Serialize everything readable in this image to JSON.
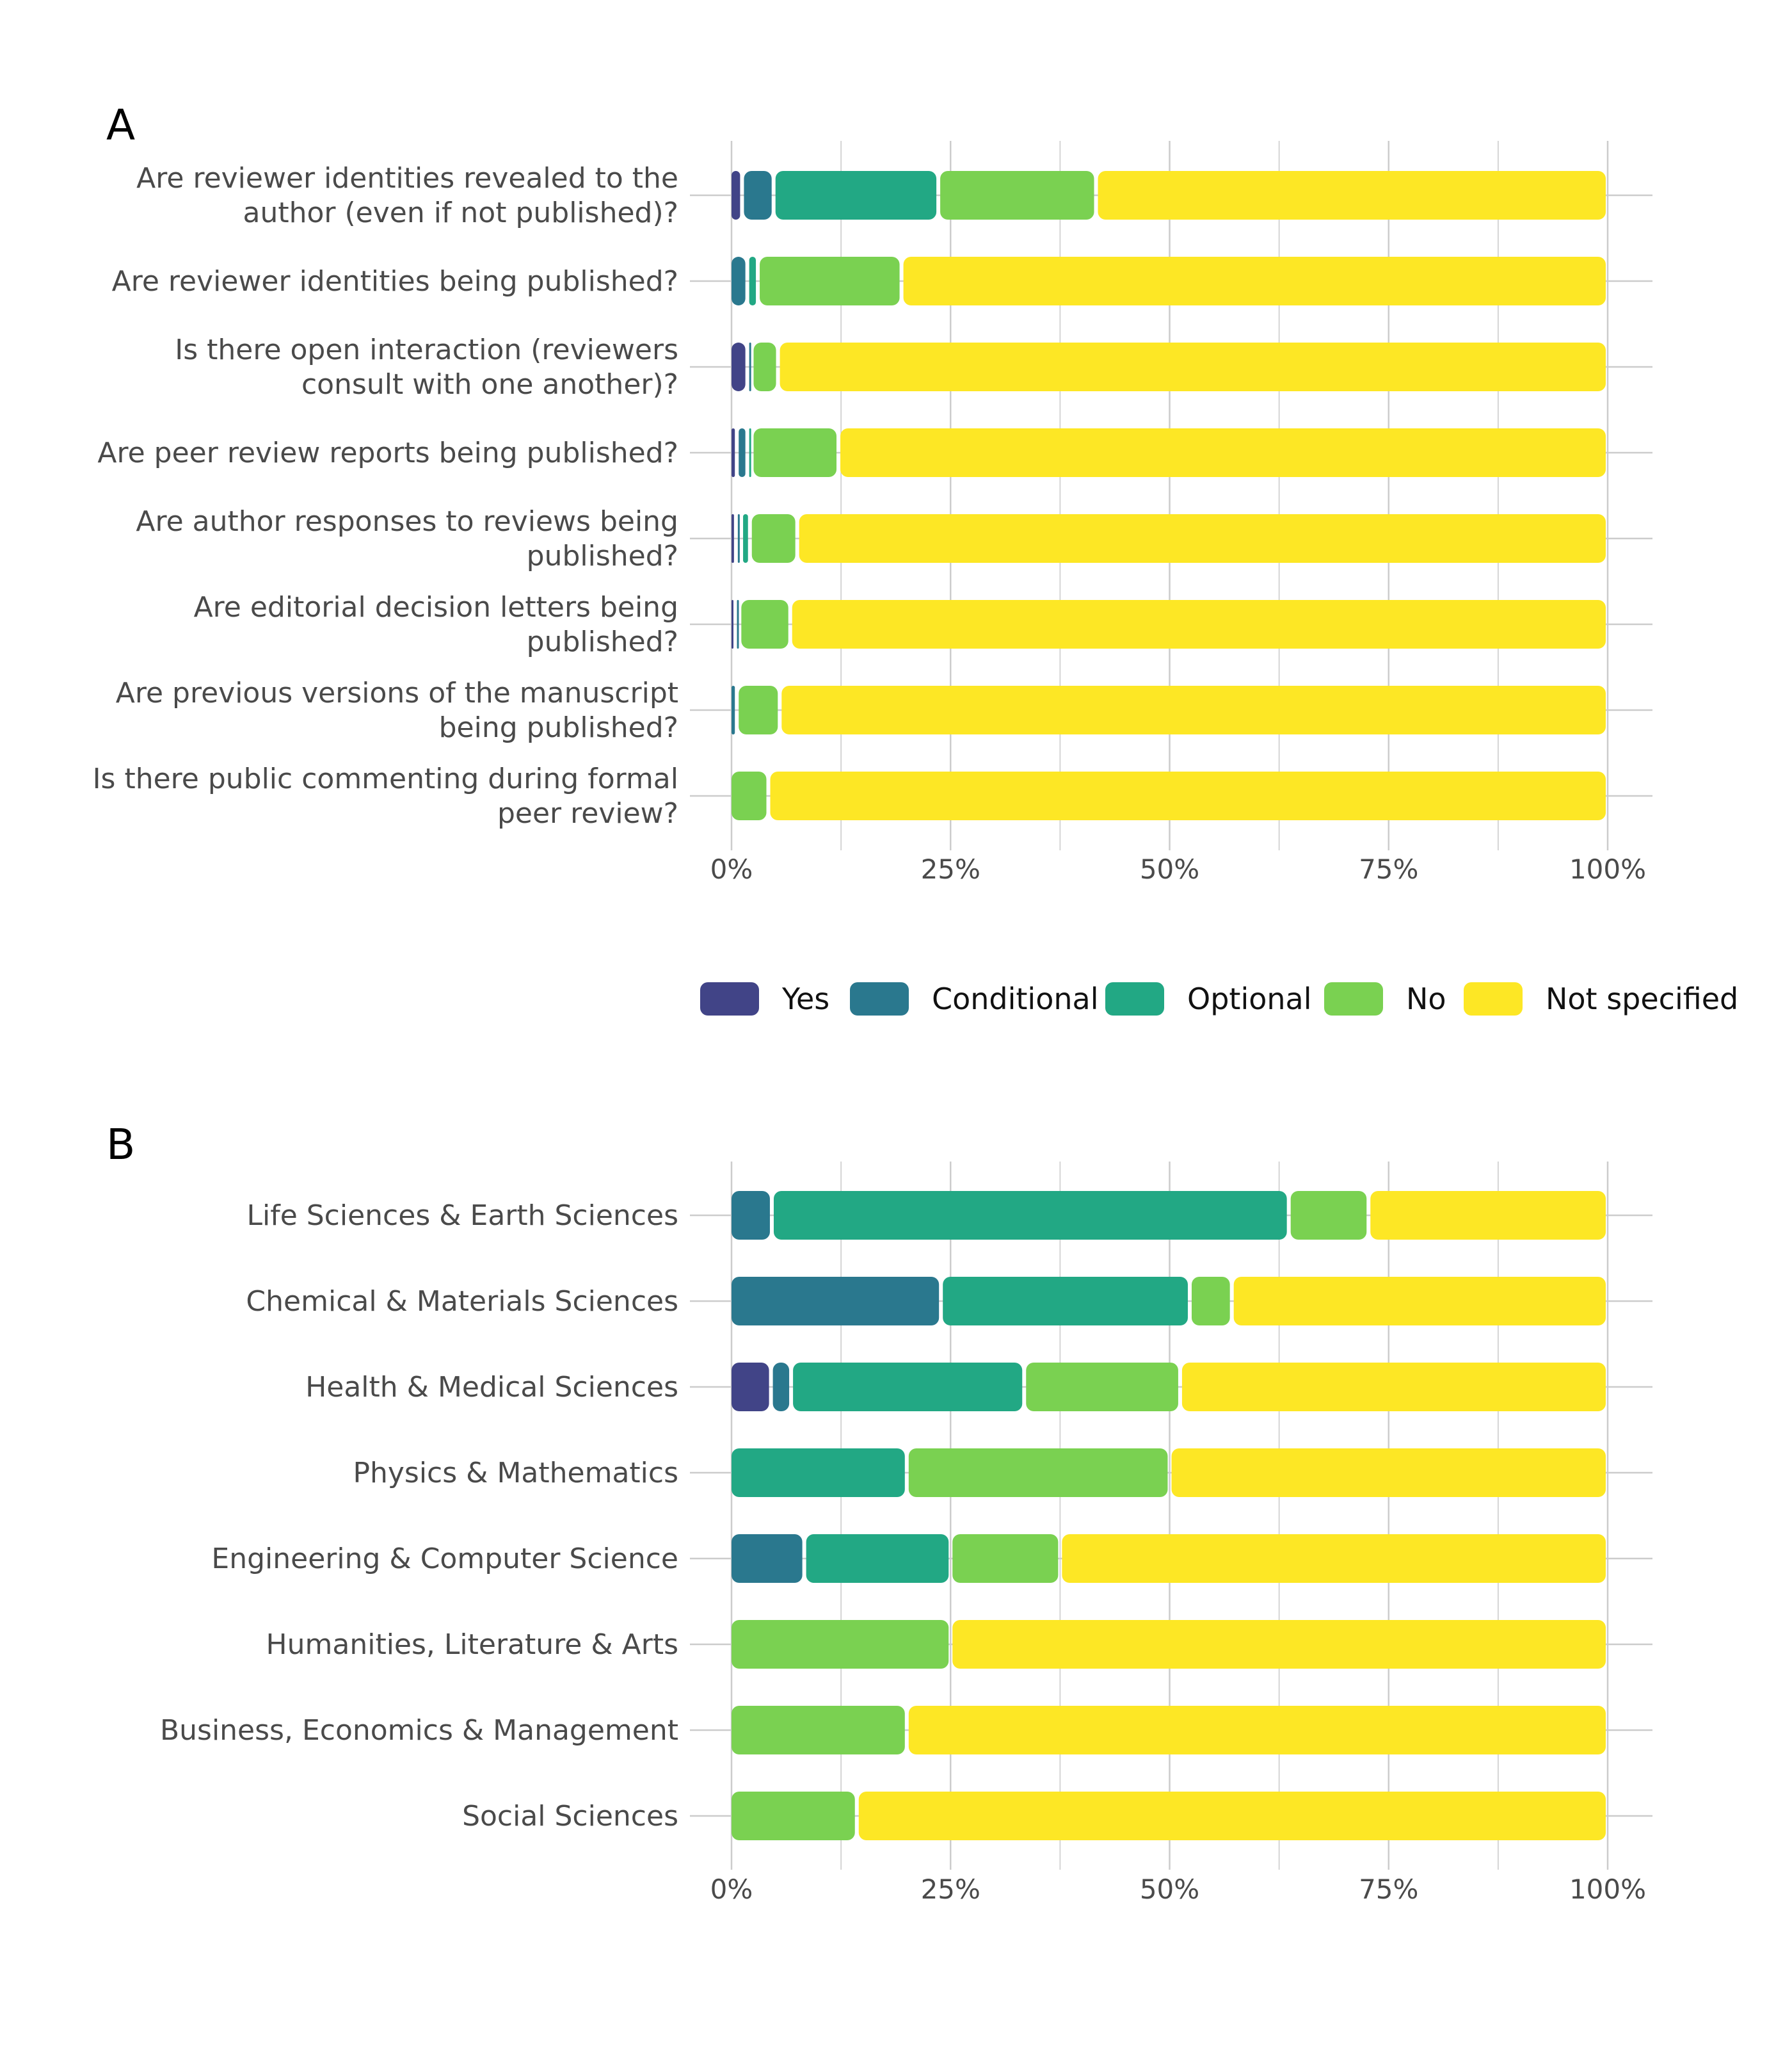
{
  "chart_data": [
    {
      "type": "bar",
      "stacked": true,
      "orientation": "horizontal",
      "panel_label": "A",
      "categories": [
        [
          "Are reviewer identities revealed to the",
          "author (even if not published)?"
        ],
        [
          "Are reviewer identities being published?"
        ],
        [
          "Is there open interaction (reviewers",
          "consult with one another)?"
        ],
        [
          "Are peer review reports being published?"
        ],
        [
          "Are author responses to reviews being",
          "published?"
        ],
        [
          "Are editorial decision letters being",
          "published?"
        ],
        [
          "Are previous versions of the manuscript",
          "being published?"
        ],
        [
          "Is there public commenting during formal",
          "peer review?"
        ]
      ],
      "series": [
        {
          "name": "Yes",
          "color": "#414487",
          "values": [
            1.2,
            0.0,
            1.8,
            0.6,
            0.5,
            0.4,
            0.0,
            0.0
          ]
        },
        {
          "name": "Conditional",
          "color": "#2a788e",
          "values": [
            3.6,
            1.8,
            0.5,
            1.2,
            0.6,
            0.5,
            0.6,
            0.0
          ]
        },
        {
          "name": "Optional",
          "color": "#22a884",
          "values": [
            18.8,
            1.2,
            0.0,
            0.5,
            1.0,
            0.0,
            0.0,
            0.0
          ]
        },
        {
          "name": "No",
          "color": "#7ad151",
          "values": [
            18.0,
            16.4,
            3.0,
            9.9,
            5.4,
            5.8,
            4.9,
            4.2
          ]
        },
        {
          "name": "Not specified",
          "color": "#fde725",
          "values": [
            58.4,
            80.6,
            94.7,
            87.8,
            92.5,
            93.3,
            94.5,
            95.8
          ]
        }
      ],
      "xlim": [
        0,
        100
      ],
      "xticks": [
        "0%",
        "25%",
        "50%",
        "75%",
        "100%"
      ],
      "grid": true,
      "legend_position": "bottom"
    },
    {
      "type": "bar",
      "stacked": true,
      "orientation": "horizontal",
      "panel_label": "B",
      "categories": [
        [
          "Life Sciences & Earth Sciences"
        ],
        [
          "Chemical & Materials Sciences"
        ],
        [
          "Health & Medical Sciences"
        ],
        [
          "Physics & Mathematics"
        ],
        [
          "Engineering & Computer Science"
        ],
        [
          "Humanities, Literature & Arts"
        ],
        [
          "Business, Economics & Management"
        ],
        [
          "Social Sciences"
        ]
      ],
      "series": [
        {
          "name": "Yes",
          "color": "#414487",
          "values": [
            0.0,
            0.0,
            4.5,
            0.0,
            0.0,
            0.0,
            0.0,
            0.0
          ]
        },
        {
          "name": "Conditional",
          "color": "#2a788e",
          "values": [
            4.6,
            23.9,
            2.3,
            0.0,
            8.3,
            0.0,
            0.0,
            0.0
          ]
        },
        {
          "name": "Optional",
          "color": "#22a884",
          "values": [
            59.0,
            28.4,
            26.6,
            20.0,
            16.7,
            0.0,
            0.0,
            0.0
          ]
        },
        {
          "name": "No",
          "color": "#7ad151",
          "values": [
            9.1,
            4.8,
            17.8,
            30.0,
            12.5,
            25.0,
            20.0,
            14.3
          ]
        },
        {
          "name": "Not specified",
          "color": "#fde725",
          "values": [
            27.3,
            42.9,
            48.8,
            50.0,
            62.5,
            75.0,
            80.0,
            85.7
          ]
        }
      ],
      "xlim": [
        0,
        100
      ],
      "xticks": [
        "0%",
        "25%",
        "50%",
        "75%",
        "100%"
      ],
      "grid": true
    }
  ],
  "legend": [
    {
      "label": "Yes",
      "color": "#414487"
    },
    {
      "label": "Conditional",
      "color": "#2a788e"
    },
    {
      "label": "Optional",
      "color": "#22a884"
    },
    {
      "label": "No",
      "color": "#7ad151"
    },
    {
      "label": "Not specified",
      "color": "#fde725"
    }
  ],
  "colors": {
    "grid": "#cccccc",
    "text": "#4a4a4a"
  }
}
